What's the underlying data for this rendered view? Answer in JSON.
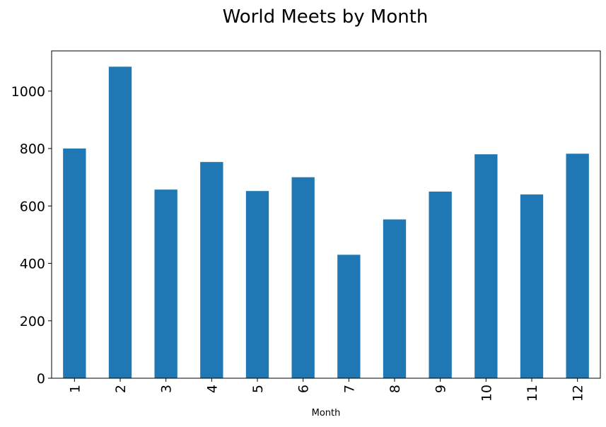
{
  "chart_data": {
    "type": "bar",
    "title": "World Meets by Month",
    "xlabel": "Month",
    "ylabel": "",
    "categories": [
      "1",
      "2",
      "3",
      "4",
      "5",
      "6",
      "7",
      "8",
      "9",
      "10",
      "11",
      "12"
    ],
    "values": [
      800,
      1085,
      657,
      753,
      652,
      700,
      430,
      553,
      650,
      780,
      640,
      782
    ],
    "ylim": [
      0,
      1140
    ],
    "yticks": [
      0,
      200,
      400,
      600,
      800,
      1000
    ],
    "bar_color": "#1f77b4",
    "grid": false,
    "legend": "none"
  }
}
